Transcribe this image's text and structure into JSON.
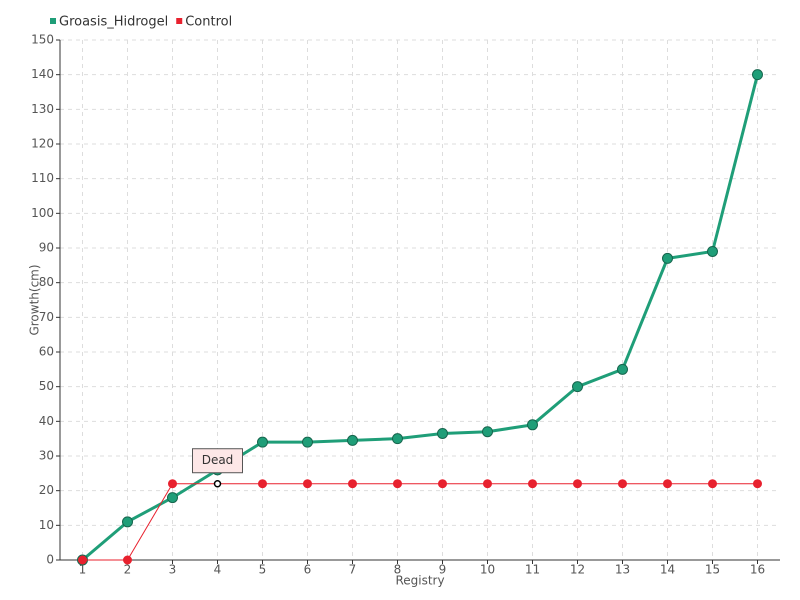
{
  "chart_data": {
    "type": "line",
    "x": [
      1,
      2,
      3,
      4,
      5,
      6,
      7,
      8,
      9,
      10,
      11,
      12,
      13,
      14,
      15,
      16
    ],
    "series": [
      {
        "name": "Groasis_Hidrogel",
        "color": "#1f9e78",
        "values": [
          0,
          11,
          18,
          26,
          34,
          34,
          34.5,
          35,
          36.5,
          37,
          39,
          50,
          55,
          87,
          89,
          140
        ]
      },
      {
        "name": "Control",
        "color": "#e8212e",
        "values": [
          0,
          0,
          22,
          22,
          22,
          22,
          22,
          22,
          22,
          22,
          22,
          22,
          22,
          22,
          22,
          22
        ]
      }
    ],
    "annotation": "Dead",
    "x_label": "Registry",
    "y_label": "Growth(cm)",
    "xlim": [
      0.5,
      16.5
    ],
    "xticks": [
      1,
      2,
      3,
      4,
      5,
      6,
      7,
      8,
      9,
      10,
      11,
      12,
      13,
      14,
      15,
      16
    ],
    "ylim": [
      0,
      150
    ],
    "yticks": [
      0,
      10,
      20,
      30,
      40,
      50,
      60,
      70,
      80,
      90,
      100,
      110,
      120,
      130,
      140,
      150
    ],
    "grid": true,
    "legend": "top-left"
  }
}
